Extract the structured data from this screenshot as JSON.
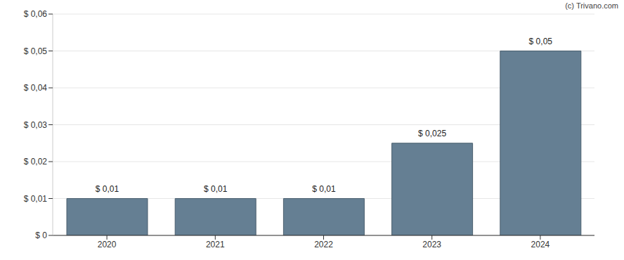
{
  "chart_data": {
    "type": "bar",
    "annotation": "(c) Trivano.com",
    "categories": [
      "2020",
      "2021",
      "2022",
      "2023",
      "2024"
    ],
    "values": [
      0.01,
      0.01,
      0.01,
      0.025,
      0.05
    ],
    "value_labels": [
      "$ 0,01",
      "$ 0,01",
      "$ 0,01",
      "$ 0,025",
      "$ 0,05"
    ],
    "data_labels": true,
    "color": "#657f93",
    "ylim": [
      0,
      0.06
    ],
    "yticks": [
      {
        "value": 0,
        "label": "$ 0"
      },
      {
        "value": 0.01,
        "label": "$ 0,01"
      },
      {
        "value": 0.02,
        "label": "$ 0,02"
      },
      {
        "value": 0.03,
        "label": "$ 0,03"
      },
      {
        "value": 0.04,
        "label": "$ 0,04"
      },
      {
        "value": 0.05,
        "label": "$ 0,05"
      },
      {
        "value": 0.06,
        "label": "$ 0,06"
      }
    ],
    "grid": true
  }
}
